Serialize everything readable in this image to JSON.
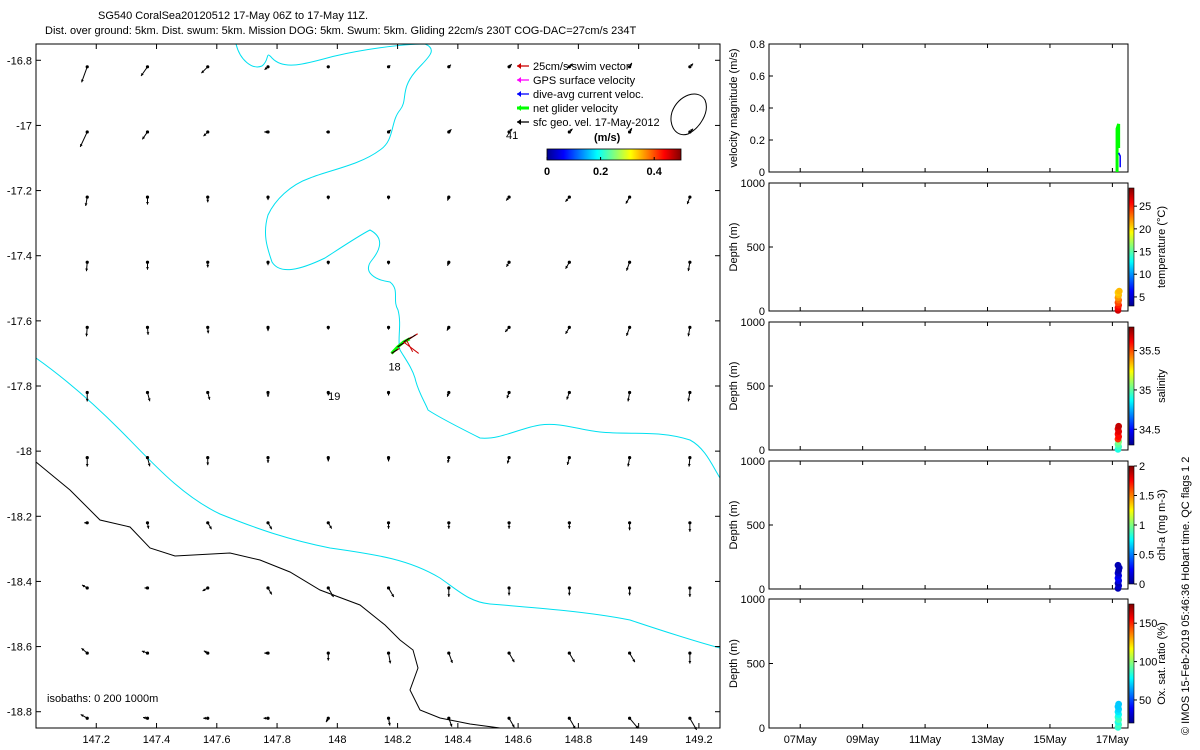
{
  "title": {
    "line1": "SG540 CoralSea20120512 17-May 06Z to 17-May 11Z.",
    "line2": "Dist. over ground: 5km. Dist. swum: 5km. Mission DOG: 5km. Swum: 5km. Gliding 22cm/s 230T COG-DAC=27cm/s 234T"
  },
  "colors": {
    "coastline": "#00e0f0",
    "isobath_1000": "#000000",
    "swim_vector": "#cc0000",
    "gps_velocity": "#ff00ff",
    "dac_velocity": "#0000ff",
    "net_velocity": "#00ff00",
    "geo_velocity": "#000000"
  },
  "chart_data": [
    {
      "type": "scatter",
      "name": "map",
      "xlim": [
        147.0,
        149.27
      ],
      "ylim": [
        -18.85,
        -16.75
      ],
      "x_ticks": [
        "147.2",
        "147.4",
        "147.6",
        "147.8",
        "148",
        "148.2",
        "148.4",
        "148.6",
        "148.8",
        "149",
        "149.2"
      ],
      "y_ticks": [
        "-16.8",
        "-17",
        "-17.2",
        "-17.4",
        "-17.6",
        "-17.8",
        "-18",
        "-18.2",
        "-18.4",
        "-18.6",
        "-18.8"
      ],
      "legend": [
        {
          "label": "25cm/s swim vector",
          "icon": "swim_vector"
        },
        {
          "label": "GPS surface velocity",
          "icon": "gps_velocity"
        },
        {
          "label": "dive-avg current veloc.",
          "icon": "dac_velocity"
        },
        {
          "label": "net glider velocity",
          "icon": "net_velocity"
        },
        {
          "label": "sfc geo. vel. 17-May-2012",
          "icon": "geo_velocity"
        }
      ],
      "colorbar": {
        "label": "(m/s)",
        "ticks": [
          "0",
          "0.2",
          "0.4"
        ],
        "range": [
          0,
          0.5
        ],
        "colormap": "jet"
      },
      "annotations": [
        {
          "text": "41",
          "x": 148.58,
          "y": -17.03
        },
        {
          "text": "18",
          "x": 148.19,
          "y": -17.74
        },
        {
          "text": "19",
          "x": 147.99,
          "y": -17.83
        }
      ],
      "footnote": "isobaths: 0   200  1000m",
      "glider_track": {
        "x": [
          148.18,
          148.2,
          148.22,
          148.24
        ],
        "y": [
          -17.7,
          -17.68,
          -17.665,
          -17.655
        ]
      },
      "geo_velocity_field": {
        "lon": [
          147.17,
          147.37,
          147.57,
          147.77,
          147.97,
          148.17,
          148.37,
          148.57,
          148.77,
          148.97,
          149.17
        ],
        "lat": [
          -16.82,
          -17.02,
          -17.22,
          -17.42,
          -17.62,
          -17.82,
          -18.02,
          -18.22,
          -18.42,
          -18.62,
          -18.82
        ],
        "dir_deg": [
          [
            200,
            215,
            225,
            230,
            45,
            50,
            45,
            45,
            45,
            30,
            45
          ],
          [
            205,
            215,
            225,
            270,
            270,
            45,
            45,
            45,
            45,
            30,
            45
          ],
          [
            190,
            180,
            180,
            180,
            180,
            180,
            200,
            220,
            220,
            210,
            200
          ],
          [
            185,
            180,
            180,
            180,
            180,
            180,
            200,
            210,
            210,
            200,
            190
          ],
          [
            185,
            175,
            175,
            180,
            180,
            180,
            210,
            220,
            210,
            200,
            190
          ],
          [
            180,
            165,
            165,
            180,
            180,
            180,
            200,
            200,
            200,
            190,
            190
          ],
          [
            180,
            165,
            180,
            180,
            180,
            180,
            190,
            195,
            195,
            190,
            185
          ],
          [
            270,
            170,
            150,
            150,
            150,
            180,
            180,
            180,
            180,
            180,
            180
          ],
          [
            300,
            270,
            240,
            150,
            150,
            150,
            180,
            180,
            180,
            180,
            180
          ],
          [
            310,
            290,
            300,
            270,
            180,
            170,
            160,
            150,
            150,
            150,
            180
          ],
          [
            300,
            280,
            270,
            270,
            210,
            170,
            160,
            150,
            150,
            140,
            150
          ]
        ],
        "speed": [
          [
            0.22,
            0.15,
            0.12,
            0.06,
            0.02,
            0.03,
            0.04,
            0.05,
            0.06,
            0.06,
            0.06
          ],
          [
            0.22,
            0.12,
            0.08,
            0.05,
            0.03,
            0.04,
            0.05,
            0.06,
            0.06,
            0.06,
            0.06
          ],
          [
            0.12,
            0.1,
            0.07,
            0.04,
            0.03,
            0.03,
            0.05,
            0.06,
            0.08,
            0.1,
            0.1
          ],
          [
            0.12,
            0.1,
            0.07,
            0.04,
            0.03,
            0.03,
            0.05,
            0.07,
            0.1,
            0.12,
            0.12
          ],
          [
            0.12,
            0.1,
            0.08,
            0.05,
            0.03,
            0.03,
            0.05,
            0.08,
            0.1,
            0.12,
            0.12
          ],
          [
            0.12,
            0.12,
            0.1,
            0.06,
            0.04,
            0.04,
            0.06,
            0.08,
            0.1,
            0.12,
            0.12
          ],
          [
            0.12,
            0.12,
            0.1,
            0.07,
            0.05,
            0.05,
            0.07,
            0.08,
            0.1,
            0.12,
            0.12
          ],
          [
            0.04,
            0.08,
            0.1,
            0.1,
            0.09,
            0.08,
            0.08,
            0.08,
            0.08,
            0.1,
            0.12
          ],
          [
            0.08,
            0.04,
            0.08,
            0.1,
            0.14,
            0.14,
            0.12,
            0.1,
            0.1,
            0.1,
            0.12
          ],
          [
            0.1,
            0.08,
            0.06,
            0.05,
            0.1,
            0.14,
            0.14,
            0.14,
            0.14,
            0.14,
            0.14
          ],
          [
            0.1,
            0.06,
            0.06,
            0.06,
            0.06,
            0.1,
            0.12,
            0.14,
            0.16,
            0.18,
            0.18
          ]
        ]
      }
    },
    {
      "type": "line",
      "name": "velocity-panel",
      "ylabel": "velocity magnitude (m/s)",
      "ylim": [
        0,
        0.8
      ],
      "y_ticks": [
        "0",
        "0.2",
        "0.4",
        "0.6",
        "0.8"
      ],
      "series": [
        {
          "name": "net glider velocity",
          "x": [
            17.15,
            17.15,
            17.2,
            17.2
          ],
          "y": [
            0.0,
            0.27,
            0.3,
            0.15
          ]
        },
        {
          "name": "dive-avg current veloc.",
          "x": [
            17.2,
            17.25,
            17.25
          ],
          "y": [
            0.12,
            0.1,
            0.03
          ]
        }
      ]
    },
    {
      "type": "scatter",
      "name": "temperature-panel",
      "ylabel": "Depth (m)",
      "colorbar_label": "temperature (°C)",
      "colorbar_ticks": [
        "5",
        "10",
        "15",
        "20",
        "25"
      ],
      "colorbar_range": [
        3,
        29
      ],
      "ylim": [
        1000,
        0
      ],
      "y_ticks": [
        "0",
        "500",
        "1000"
      ],
      "points": [
        [
          17.18,
          5,
          27
        ],
        [
          17.18,
          25,
          26
        ],
        [
          17.2,
          45,
          25
        ],
        [
          17.18,
          65,
          24
        ],
        [
          17.2,
          85,
          23
        ],
        [
          17.18,
          105,
          22
        ],
        [
          17.2,
          125,
          21
        ],
        [
          17.18,
          145,
          20.5
        ],
        [
          17.22,
          155,
          21
        ]
      ]
    },
    {
      "type": "scatter",
      "name": "salinity-panel",
      "ylabel": "Depth (m)",
      "colorbar_label": "salinity",
      "colorbar_ticks": [
        "34.5",
        "35",
        "35.5"
      ],
      "colorbar_range": [
        34.3,
        35.8
      ],
      "ylim": [
        1000,
        0
      ],
      "y_ticks": [
        "0",
        "500",
        "1000"
      ],
      "points": [
        [
          17.18,
          5,
          34.9
        ],
        [
          17.2,
          25,
          34.95
        ],
        [
          17.18,
          45,
          35.0
        ],
        [
          17.2,
          65,
          35.05
        ],
        [
          17.18,
          85,
          35.55
        ],
        [
          17.2,
          105,
          35.6
        ],
        [
          17.18,
          125,
          35.6
        ],
        [
          17.2,
          145,
          35.65
        ],
        [
          17.18,
          165,
          35.65
        ],
        [
          17.2,
          185,
          35.7
        ]
      ]
    },
    {
      "type": "scatter",
      "name": "chla-panel",
      "ylabel": "Depth (m)",
      "colorbar_label": "chl-a (mg m-3)",
      "colorbar_ticks": [
        "0",
        "0.5",
        "1",
        "1.5",
        "2"
      ],
      "colorbar_range": [
        0,
        2
      ],
      "ylim": [
        1000,
        0
      ],
      "y_ticks": [
        "0",
        "500",
        "1000"
      ],
      "points": [
        [
          17.18,
          5,
          0.1
        ],
        [
          17.2,
          25,
          0.15
        ],
        [
          17.18,
          45,
          0.1
        ],
        [
          17.2,
          65,
          0.2
        ],
        [
          17.18,
          85,
          0.25
        ],
        [
          17.2,
          105,
          0.2
        ],
        [
          17.18,
          125,
          0.15
        ],
        [
          17.2,
          145,
          0.1
        ],
        [
          17.22,
          165,
          0.1
        ],
        [
          17.18,
          185,
          0.1
        ]
      ]
    },
    {
      "type": "scatter",
      "name": "oxygen-panel",
      "ylabel": "Depth (m)",
      "colorbar_label": "Ox. sat. ratio (%)",
      "colorbar_ticks": [
        "50",
        "100",
        "150"
      ],
      "colorbar_range": [
        20,
        175
      ],
      "ylim": [
        1000,
        0
      ],
      "y_ticks": [
        "0",
        "500",
        "1000"
      ],
      "x_ticks": [
        "07May",
        "09May",
        "11May",
        "13May",
        "15May",
        "17May"
      ],
      "x_tick_values": [
        7,
        9,
        11,
        13,
        15,
        17
      ],
      "xlim": [
        6,
        17.5
      ],
      "points": [
        [
          17.18,
          5,
          85
        ],
        [
          17.2,
          25,
          88
        ],
        [
          17.18,
          45,
          82
        ],
        [
          17.2,
          65,
          90
        ],
        [
          17.18,
          85,
          85
        ],
        [
          17.2,
          105,
          80
        ],
        [
          17.18,
          125,
          75
        ],
        [
          17.2,
          145,
          72
        ],
        [
          17.18,
          165,
          70
        ],
        [
          17.2,
          185,
          70
        ]
      ]
    }
  ],
  "side_note": "© IMOS 15-Feb-2019 05:46:36 Hobart time. QC flags 1  2"
}
